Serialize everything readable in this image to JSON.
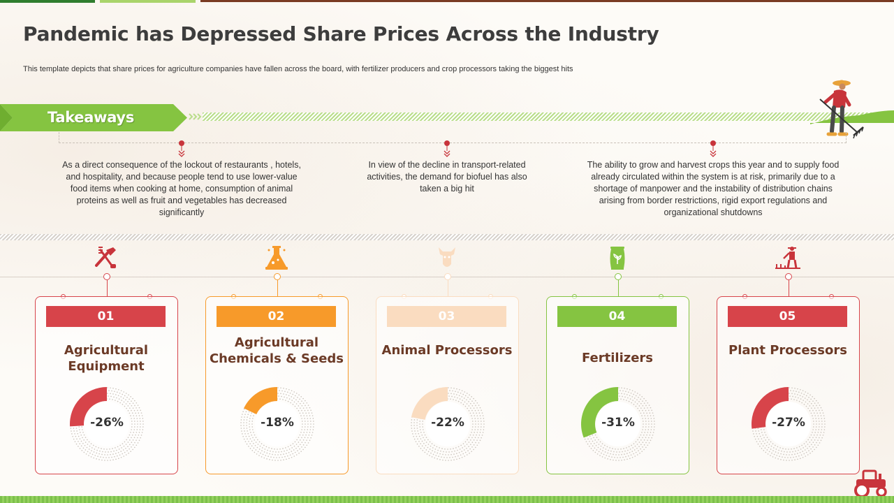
{
  "title": "Pandemic has Depressed Share Prices Across the Industry",
  "subtitle": "This template depicts that share prices for agriculture companies have fallen across the board, with fertilizer producers and crop processors taking the biggest hits",
  "takeaways": {
    "label": "Takeaways",
    "items": [
      "As a direct consequence of the lockout of restaurants , hotels, and hospitality, and because people tend to use lower-value food items when cooking at home, consumption of animal proteins as well as fruit and vegetables has decreased significantly",
      "In view of the decline in transport-related activities, the demand for biofuel has also taken a big hit",
      "The ability to grow and harvest crops this year and to supply food already circulated within the system is at risk, primarily due to a shortage of manpower and the instability of distribution chains arising from border restrictions, rigid export regulations and organizational shutdowns"
    ]
  },
  "colors": {
    "red": "#d7444a",
    "orange": "#f79a2a",
    "peach": "#fadcc0",
    "green": "#85c441",
    "brown": "#6b3a26"
  },
  "categories": [
    {
      "num": "01",
      "name": "Agricultural Equipment",
      "value_label": "-26%",
      "value": 26,
      "color": "#d7444a",
      "icon": "garden-tools-icon"
    },
    {
      "num": "02",
      "name": "Agricultural Chemicals & Seeds",
      "value_label": "-18%",
      "value": 18,
      "color": "#f79a2a",
      "icon": "chemical-flask-icon"
    },
    {
      "num": "03",
      "name": "Animal Processors",
      "value_label": "-22%",
      "value": 22,
      "color": "#fadcc0",
      "icon": "cow-head-icon"
    },
    {
      "num": "04",
      "name": "Fertilizers",
      "value_label": "-31%",
      "value": 31,
      "color": "#85c441",
      "icon": "fertilizer-bag-icon"
    },
    {
      "num": "05",
      "name": "Plant Processors",
      "value_label": "-27%",
      "value": 27,
      "color": "#d7444a",
      "icon": "farmer-planting-icon"
    }
  ]
}
